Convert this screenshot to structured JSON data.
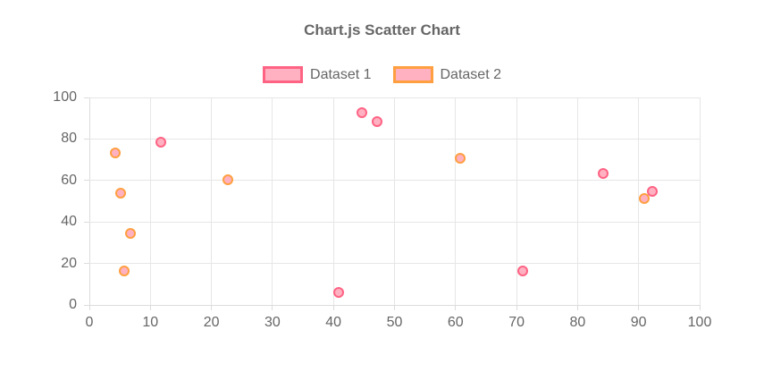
{
  "chart_data": {
    "type": "scatter",
    "title": "Chart.js Scatter Chart",
    "legend_position": "top",
    "grid": true,
    "x_axis": {
      "min": 0,
      "max": 100,
      "ticks": [
        0,
        10,
        20,
        30,
        40,
        50,
        60,
        70,
        80,
        90,
        100
      ]
    },
    "y_axis": {
      "min": 0,
      "max": 100,
      "ticks": [
        0,
        20,
        40,
        60,
        80,
        100
      ]
    },
    "series": [
      {
        "name": "Dataset 1",
        "border_color": "#FF6384",
        "fill_color": "#FFB1C1",
        "points": [
          {
            "x": 11.7,
            "y": 78.3
          },
          {
            "x": 40.9,
            "y": 5.9
          },
          {
            "x": 44.6,
            "y": 92.7
          },
          {
            "x": 47.2,
            "y": 88.2
          },
          {
            "x": 71.0,
            "y": 16.4
          },
          {
            "x": 84.2,
            "y": 63.5
          },
          {
            "x": 92.2,
            "y": 54.9
          }
        ]
      },
      {
        "name": "Dataset 2",
        "border_color": "#FF9F40",
        "fill_color": "#FFB1C1",
        "points": [
          {
            "x": 4.2,
            "y": 73.4
          },
          {
            "x": 5.1,
            "y": 53.9
          },
          {
            "x": 5.7,
            "y": 16.3
          },
          {
            "x": 6.8,
            "y": 34.4
          },
          {
            "x": 22.7,
            "y": 60.5
          },
          {
            "x": 60.8,
            "y": 70.8
          },
          {
            "x": 90.9,
            "y": 51.4
          }
        ]
      }
    ],
    "colors": {
      "title": "#666666",
      "tick_text": "#666666",
      "grid": "#e6e6e6",
      "axis": "#dcdcdc"
    }
  }
}
